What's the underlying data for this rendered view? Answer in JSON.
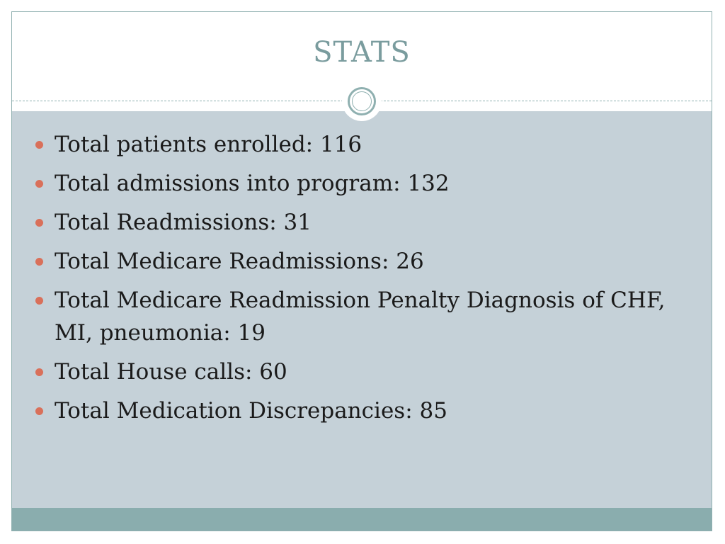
{
  "slide": {
    "title": "STATS",
    "bullets": [
      "Total patients enrolled: 116",
      "Total admissions into program: 132",
      "Total Readmissions: 31",
      "Total Medicare Readmissions: 26",
      "Total Medicare Readmission Penalty Diagnosis of CHF, MI, pneumonia: 19",
      "Total House calls: 60",
      "Total Medication Discrepancies: 85"
    ]
  },
  "colors": {
    "title": "#7a9c9e",
    "content_background": "#c5d1d8",
    "footer_bar": "#8aadae",
    "bullet_marker": "#d9705a",
    "text": "#1a1a1a"
  }
}
